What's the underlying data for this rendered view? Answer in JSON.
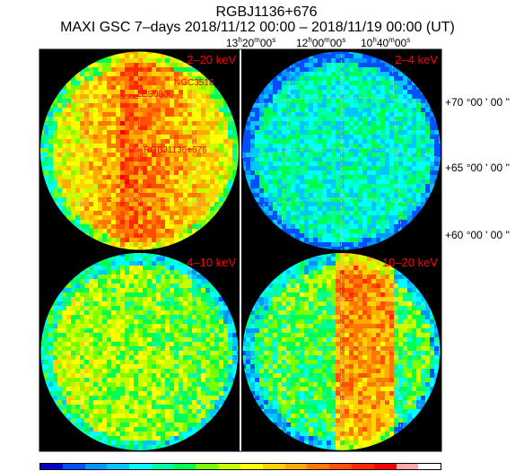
{
  "header": {
    "source": "RGBJ1136+676",
    "subtitle": "MAXI GSC 7–days 2018/11/12 00:00 – 2018/11/19 00:00 (UT)"
  },
  "ra_ticks": [
    {
      "h": "13",
      "m": "20",
      "s": "00",
      "sec": "s"
    },
    {
      "h": "12",
      "m": "00",
      "s": "00",
      "sec": "s"
    },
    {
      "h": "10",
      "m": "40",
      "s": "00",
      "sec": "s"
    }
  ],
  "dec_ticks": [
    "+70 °00 ' 00 ''",
    "+65 °00 ' 00 ''",
    "+60 °00 ' 00 ''"
  ],
  "panels": [
    {
      "band": "2–20 keV",
      "style": "hot",
      "labels": [
        "NGC3516",
        "1ES0806",
        "RGBJ1136+676"
      ]
    },
    {
      "band": "2–4 keV",
      "style": "cool",
      "labels": []
    },
    {
      "band": "4–10 keV",
      "style": "mid",
      "labels": []
    },
    {
      "band": "10–20 keV",
      "style": "hotright",
      "labels": []
    }
  ],
  "colors": {
    "label": "#ff0000",
    "background": "#000000",
    "scale": [
      "#0000cc",
      "#0050ff",
      "#0096ff",
      "#00c8ff",
      "#00ffff",
      "#00ffa0",
      "#00ff50",
      "#78ff00",
      "#c8ff00",
      "#ffff00",
      "#ffd200",
      "#ffaa00",
      "#ff7800",
      "#ff5000",
      "#ff2800",
      "#ff0000",
      "#ffaaaa",
      "#ffffff"
    ]
  }
}
